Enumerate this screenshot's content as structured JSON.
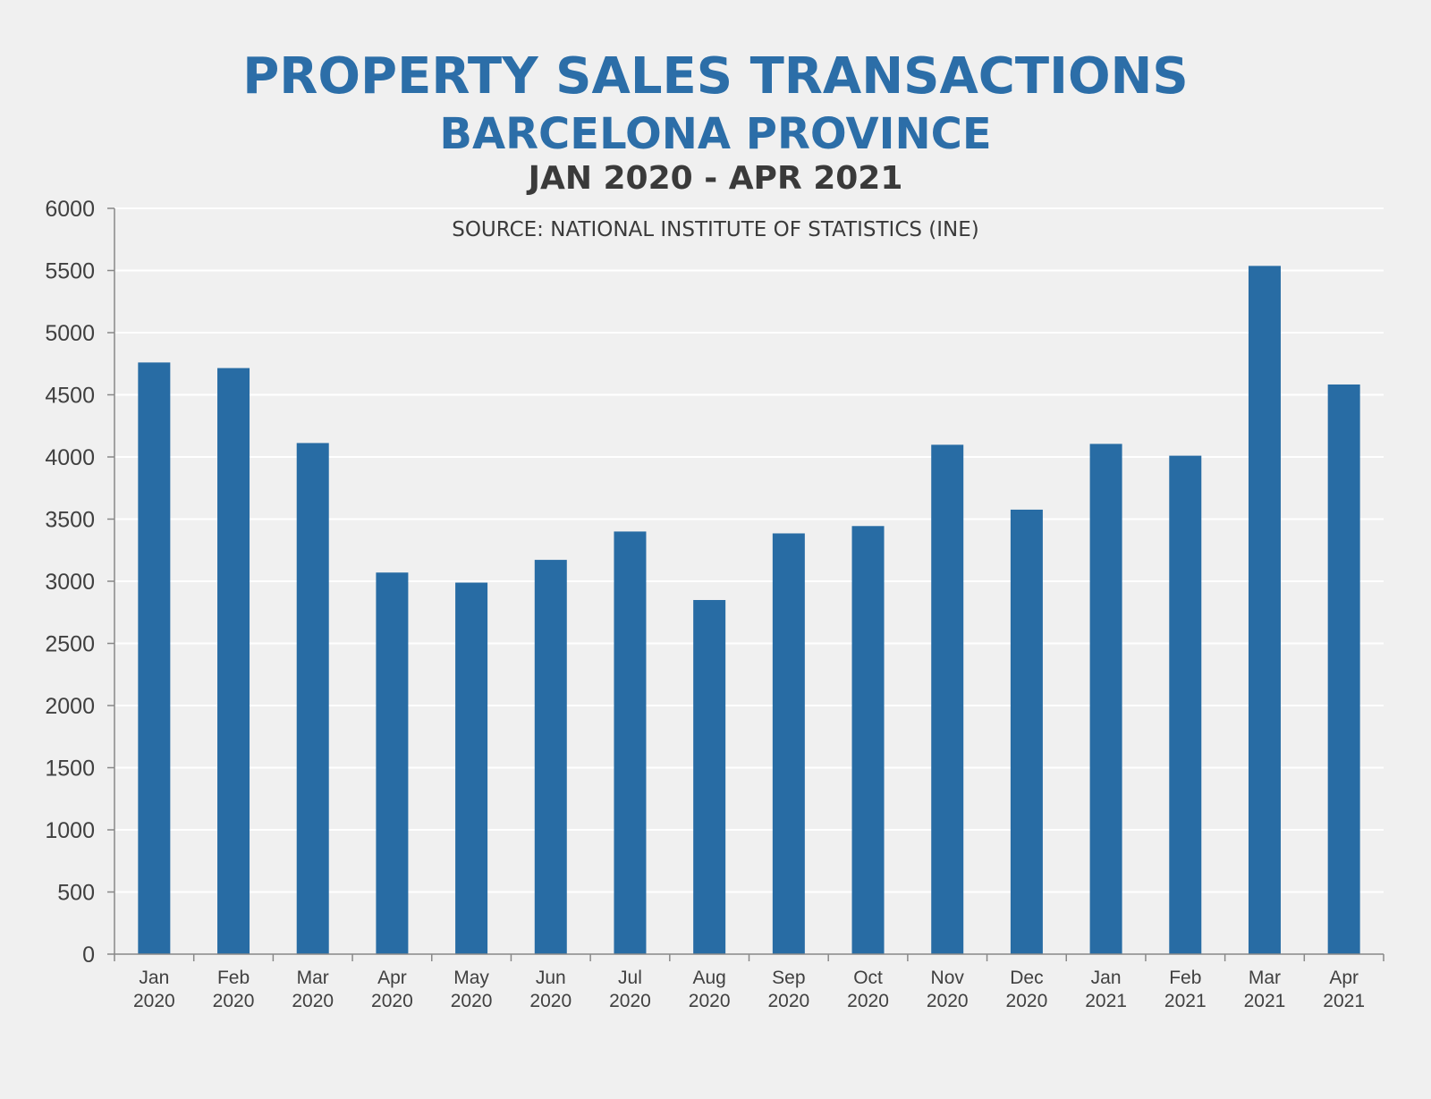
{
  "colors": {
    "bar": "#286ca4",
    "title": "#2c6ea8",
    "background": "#f0f0f0"
  },
  "chart_data": {
    "type": "bar",
    "title": "PROPERTY SALES TRANSACTIONS",
    "subtitle": "BARCELONA PROVINCE",
    "period": "JAN 2020 - APR 2021",
    "source": "SOURCE: NATIONAL INSTITUTE OF STATISTICS (INE)",
    "xlabel": "",
    "ylabel": "",
    "ylim": [
      0,
      6000
    ],
    "yticks": [
      0,
      500,
      1000,
      1500,
      2000,
      2500,
      3000,
      3500,
      4000,
      4500,
      5000,
      5500,
      6000
    ],
    "grid": true,
    "categories": [
      [
        "Jan",
        "2020"
      ],
      [
        "Feb",
        "2020"
      ],
      [
        "Mar",
        "2020"
      ],
      [
        "Apr",
        "2020"
      ],
      [
        "May",
        "2020"
      ],
      [
        "Jun",
        "2020"
      ],
      [
        "Jul",
        "2020"
      ],
      [
        "Aug",
        "2020"
      ],
      [
        "Sep",
        "2020"
      ],
      [
        "Oct",
        "2020"
      ],
      [
        "Nov",
        "2020"
      ],
      [
        "Dec",
        "2020"
      ],
      [
        "Jan",
        "2021"
      ],
      [
        "Feb",
        "2021"
      ],
      [
        "Mar",
        "2021"
      ],
      [
        "Apr",
        "2021"
      ]
    ],
    "values": [
      4760,
      4715,
      4112,
      3070,
      2989,
      3172,
      3400,
      2849,
      3385,
      3444,
      4098,
      3576,
      4105,
      4010,
      5537,
      4583
    ]
  }
}
